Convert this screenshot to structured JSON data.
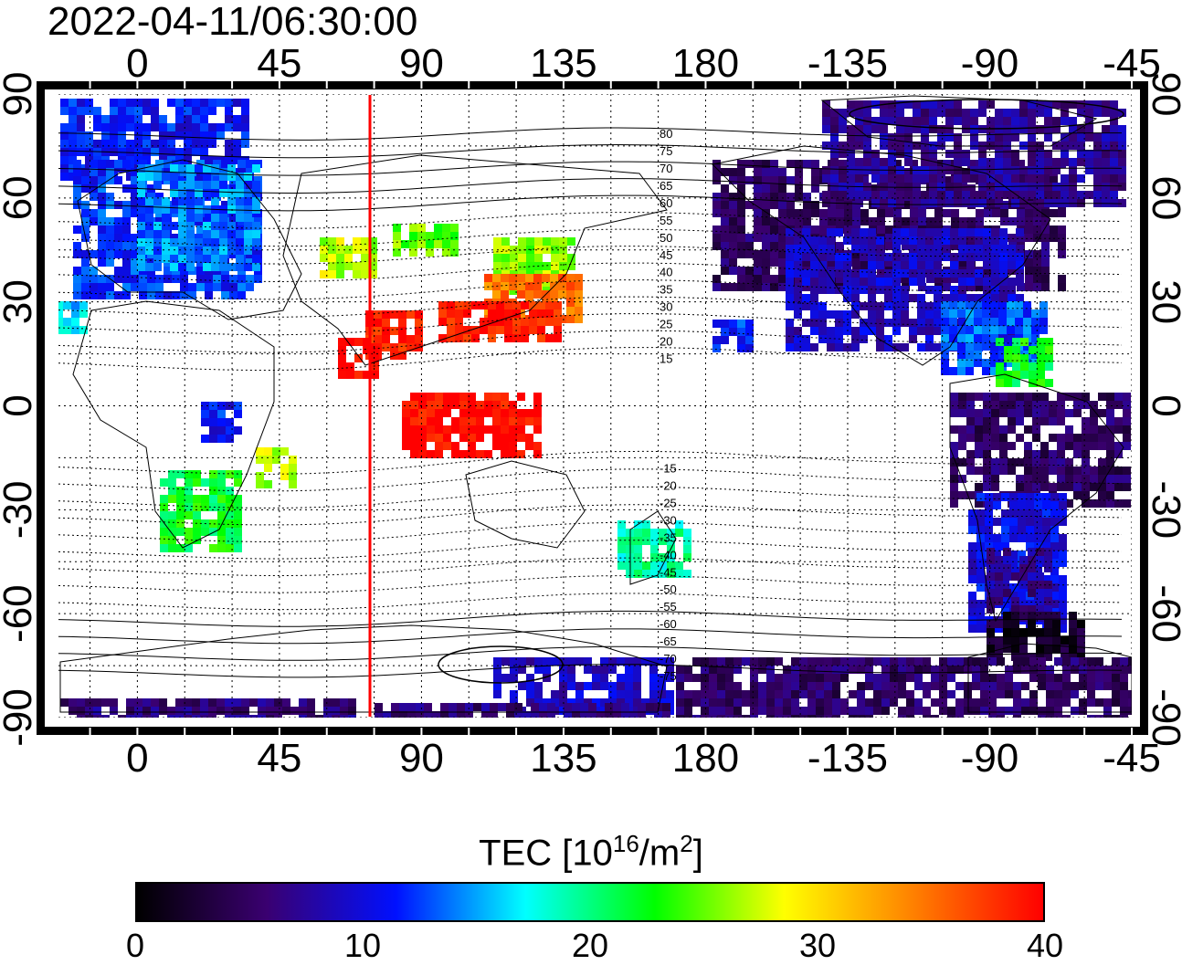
{
  "title": "2022-04-11/06:30:00",
  "map": {
    "lon_top_labels": [
      "0",
      "45",
      "90",
      "135",
      "180",
      "-135",
      "-90",
      "-45"
    ],
    "lon_bottom_labels": [
      "0",
      "45",
      "90",
      "135",
      "180",
      "-135",
      "-90",
      "-45"
    ],
    "lat_left_labels": [
      "90",
      "60",
      "30",
      "0",
      "-30",
      "-60",
      "-90"
    ],
    "lat_right_labels": [
      "90",
      "60",
      "30",
      "0",
      "-30",
      "-60",
      "-90"
    ],
    "grid": "dotted",
    "terminator_longitude": 85,
    "terminator_color": "#ff0000",
    "contour_labels": [
      "80",
      "75",
      "70",
      "65",
      "60",
      "55",
      "50",
      "45",
      "40",
      "35",
      "30",
      "25",
      "20",
      "15",
      "-15",
      "-20",
      "-25",
      "-30",
      "-35",
      "-40",
      "-45",
      "-50",
      "-55",
      "-60",
      "-65",
      "-70",
      "-75"
    ]
  },
  "colorbar": {
    "title_main": "TEC  [10",
    "title_sup1": "16",
    "title_mid": "/m",
    "title_sup2": "2",
    "title_end": "]",
    "min": 0,
    "max": 40,
    "tick_labels": [
      "0",
      "10",
      "20",
      "30",
      "40"
    ],
    "colors": [
      "#000000",
      "#3a0070",
      "#0010ff",
      "#00ffff",
      "#00ff00",
      "#ffff00",
      "#ff8000",
      "#ff0000"
    ]
  }
}
